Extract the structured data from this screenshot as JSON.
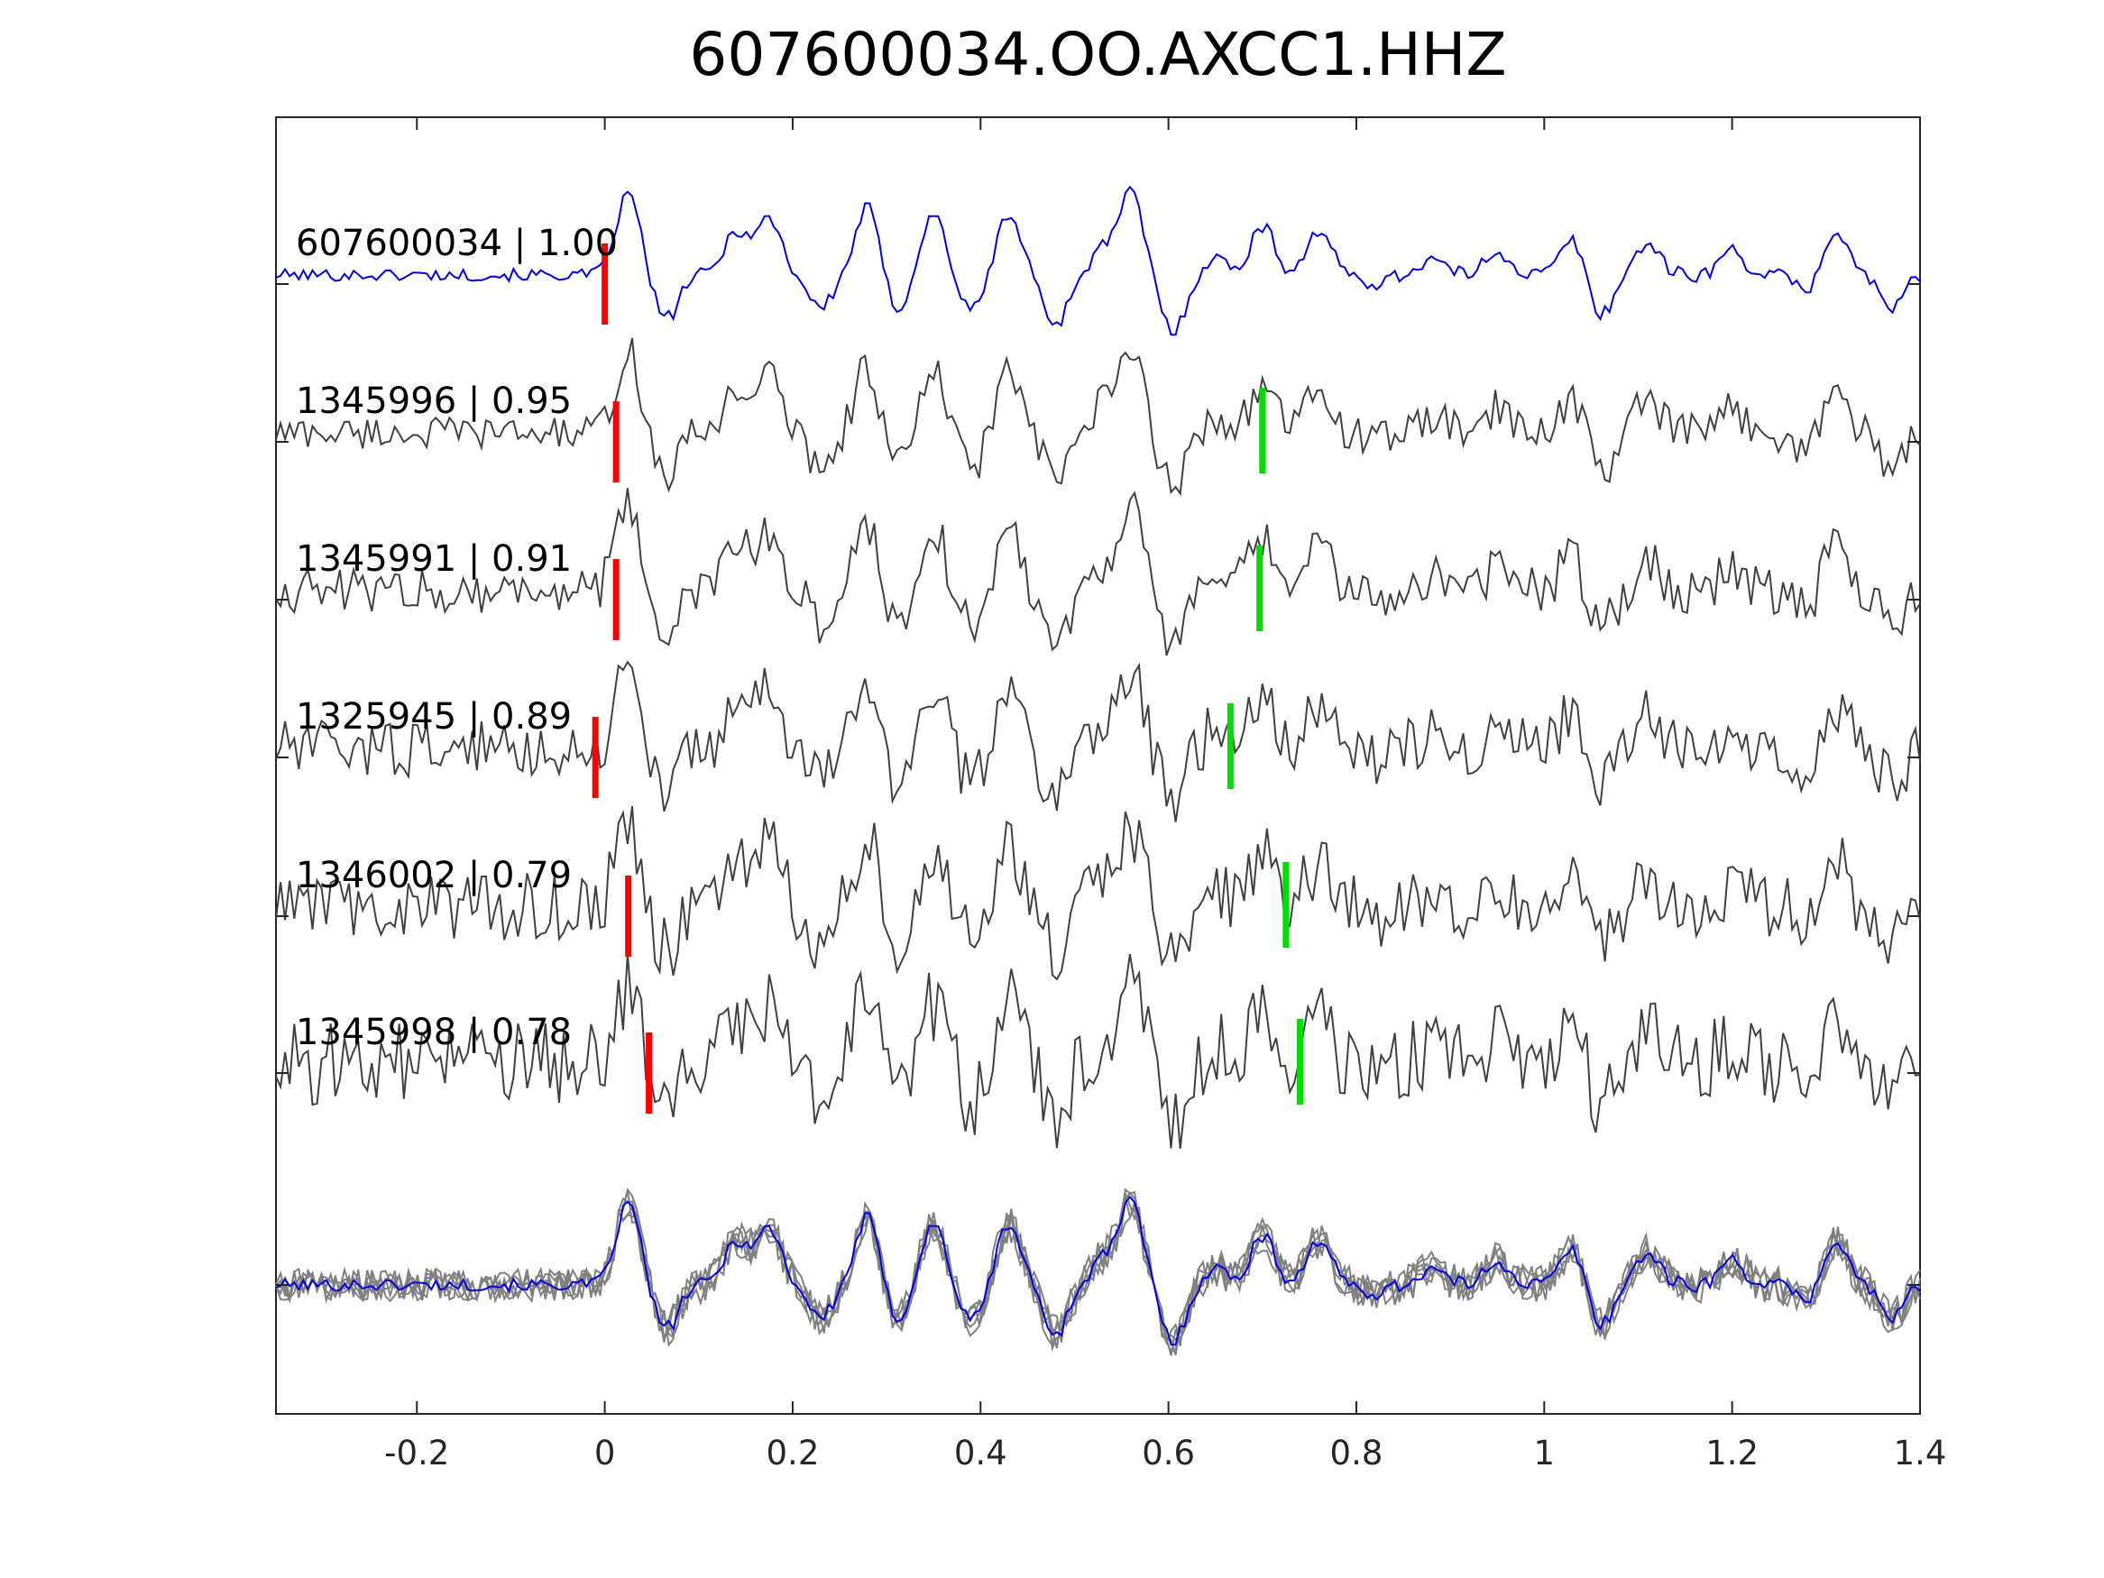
{
  "title": "607600034.OO.AXCC1.HHZ",
  "chart_data": {
    "type": "line",
    "title": "607600034.OO.AXCC1.HHZ",
    "xlabel": "",
    "ylabel": "",
    "xlim": [
      -0.35,
      1.4
    ],
    "xticks": [
      -0.2,
      0,
      0.2,
      0.4,
      0.6,
      0.8,
      1,
      1.2,
      1.4
    ],
    "xtick_labels": [
      "-0.2",
      "0",
      "0.2",
      "0.4",
      "0.6",
      "0.8",
      "1",
      "1.2",
      "1.4"
    ],
    "grid": false,
    "colors": {
      "reference": "#0000e6",
      "trace": "#404040",
      "stack": "#808080",
      "p_pick": "#ff0000",
      "s_pick": "#00dd00",
      "axis": "#262626"
    },
    "traces": [
      {
        "label": "607600034 | 1.00",
        "id": "607600034",
        "cc": 1.0,
        "p_pick": 0.0,
        "s_pick": null,
        "reference": true
      },
      {
        "label": "1345996 | 0.95",
        "id": "1345996",
        "cc": 0.95,
        "p_pick": 0.012,
        "s_pick": 0.7
      },
      {
        "label": "1345991 | 0.91",
        "id": "1345991",
        "cc": 0.91,
        "p_pick": 0.012,
        "s_pick": 0.697
      },
      {
        "label": "1325945 | 0.89",
        "id": "1325945",
        "cc": 0.89,
        "p_pick": -0.01,
        "s_pick": 0.666
      },
      {
        "label": "1346002 | 0.79",
        "id": "1346002",
        "cc": 0.79,
        "p_pick": 0.025,
        "s_pick": 0.725
      },
      {
        "label": "1345998 | 0.78",
        "id": "1345998",
        "cc": 0.78,
        "p_pick": 0.047,
        "s_pick": 0.74
      }
    ],
    "stack": {
      "description_shown": false
    }
  }
}
